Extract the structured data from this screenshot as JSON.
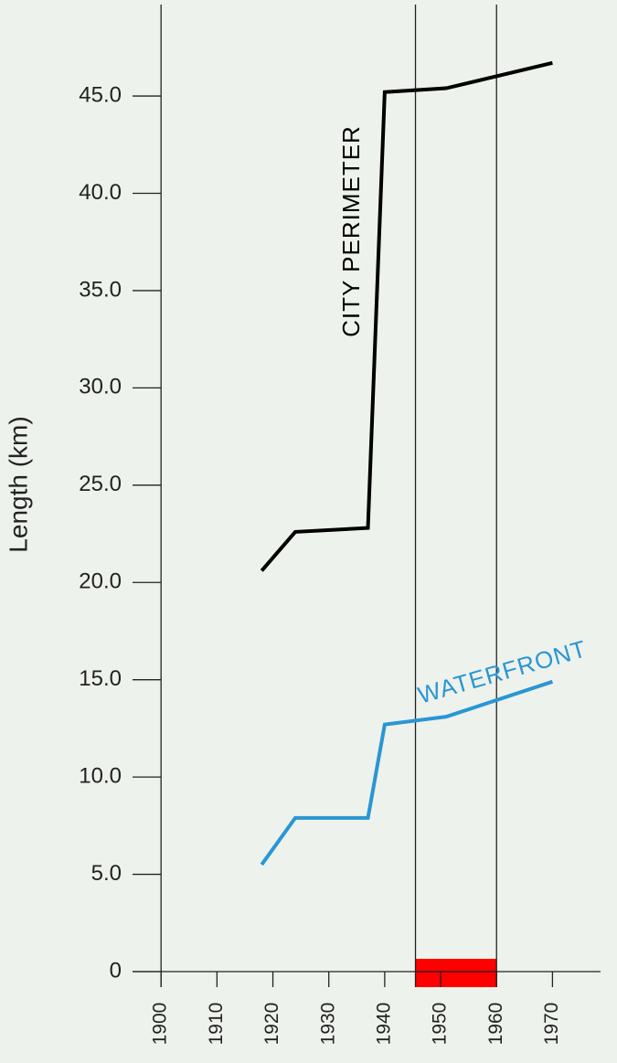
{
  "chart_data": {
    "type": "line",
    "y_label": "Length (km)",
    "x": [
      1918,
      1924,
      1937,
      1940,
      1951,
      1970
    ],
    "series": [
      {
        "name": "CITY PERIMETER",
        "color": "#000000",
        "values": [
          20.6,
          22.6,
          22.8,
          45.2,
          45.4,
          46.7
        ]
      },
      {
        "name": "WATERFRONT",
        "color": "#2a96d4",
        "values": [
          5.5,
          7.9,
          7.9,
          12.7,
          13.1,
          14.9
        ]
      }
    ],
    "xlim": [
      1894.9,
      1978.6
    ],
    "xticks": [
      1900,
      1910,
      1920,
      1930,
      1940,
      1950,
      1960,
      1970
    ],
    "ylim": [
      0,
      49.7
    ],
    "yticks": [
      0,
      {
        "value": 5,
        "label": "5.0"
      },
      {
        "value": 10,
        "label": "10.0"
      },
      {
        "value": 15,
        "label": "15.0"
      },
      {
        "value": 20,
        "label": "20.0"
      },
      {
        "value": 25,
        "label": "25.0"
      },
      {
        "value": 30,
        "label": "30.0"
      },
      {
        "value": 35,
        "label": "35.0"
      },
      {
        "value": 40,
        "label": "40.0"
      },
      {
        "value": 45,
        "label": "45.0"
      }
    ],
    "highlight": {
      "start": 1945.5,
      "end": 1960,
      "color": "#ff0000"
    }
  }
}
